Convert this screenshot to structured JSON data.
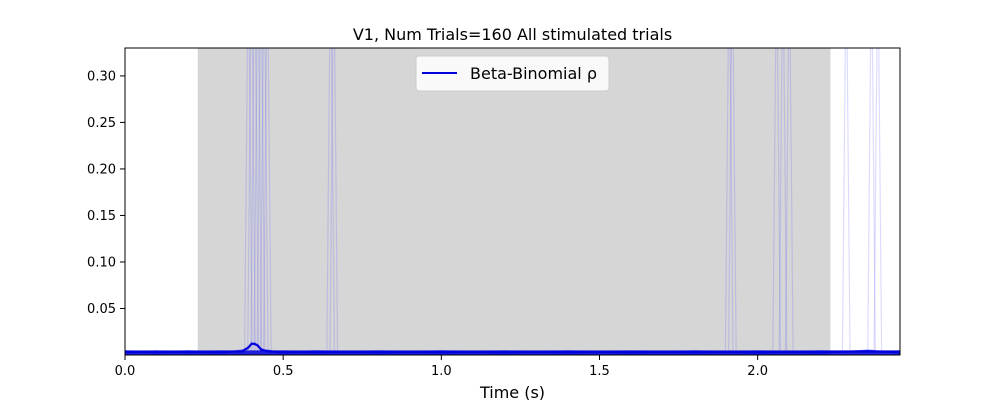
{
  "chart_data": {
    "type": "line",
    "title": "V1, Num Trials=160 All stimulated trials",
    "xlabel": "Time (s)",
    "ylabel": "",
    "xlim": [
      0.0,
      2.45
    ],
    "ylim": [
      0.0,
      0.33
    ],
    "xticks": [
      "0.0",
      "0.5",
      "1.0",
      "1.5",
      "2.0"
    ],
    "xtick_values": [
      0.0,
      0.5,
      1.0,
      1.5,
      2.0
    ],
    "yticks": [
      "0.05",
      "0.10",
      "0.15",
      "0.20",
      "0.25",
      "0.30"
    ],
    "ytick_values": [
      0.05,
      0.1,
      0.15,
      0.2,
      0.25,
      0.3
    ],
    "grid": false,
    "stimulus_window": {
      "x": [
        0.23,
        2.23
      ],
      "color": "#d6d6d6"
    },
    "legend": {
      "position": "top-center",
      "entries": [
        "Beta-Binomial ρ"
      ]
    },
    "series": [
      {
        "name": "Beta-Binomial ρ",
        "color": "#0000dd",
        "x": [
          0.0,
          0.1,
          0.2,
          0.3,
          0.37,
          0.39,
          0.4,
          0.41,
          0.42,
          0.43,
          0.45,
          0.5,
          0.6,
          0.8,
          1.0,
          1.2,
          1.4,
          1.6,
          1.8,
          2.0,
          2.2,
          2.35,
          2.45
        ],
        "values": [
          0.003,
          0.003,
          0.003,
          0.003,
          0.004,
          0.008,
          0.012,
          0.012,
          0.01,
          0.006,
          0.004,
          0.003,
          0.003,
          0.003,
          0.003,
          0.003,
          0.003,
          0.003,
          0.003,
          0.003,
          0.003,
          0.004,
          0.003
        ]
      }
    ],
    "individual_trial_spikes_x": [
      0.39,
      0.4,
      0.41,
      0.42,
      0.43,
      0.44,
      0.45,
      0.65,
      0.66,
      1.91,
      1.92,
      2.06,
      2.08,
      2.1,
      2.28,
      2.36,
      2.38
    ],
    "individual_trial_color": "#6060ff"
  }
}
